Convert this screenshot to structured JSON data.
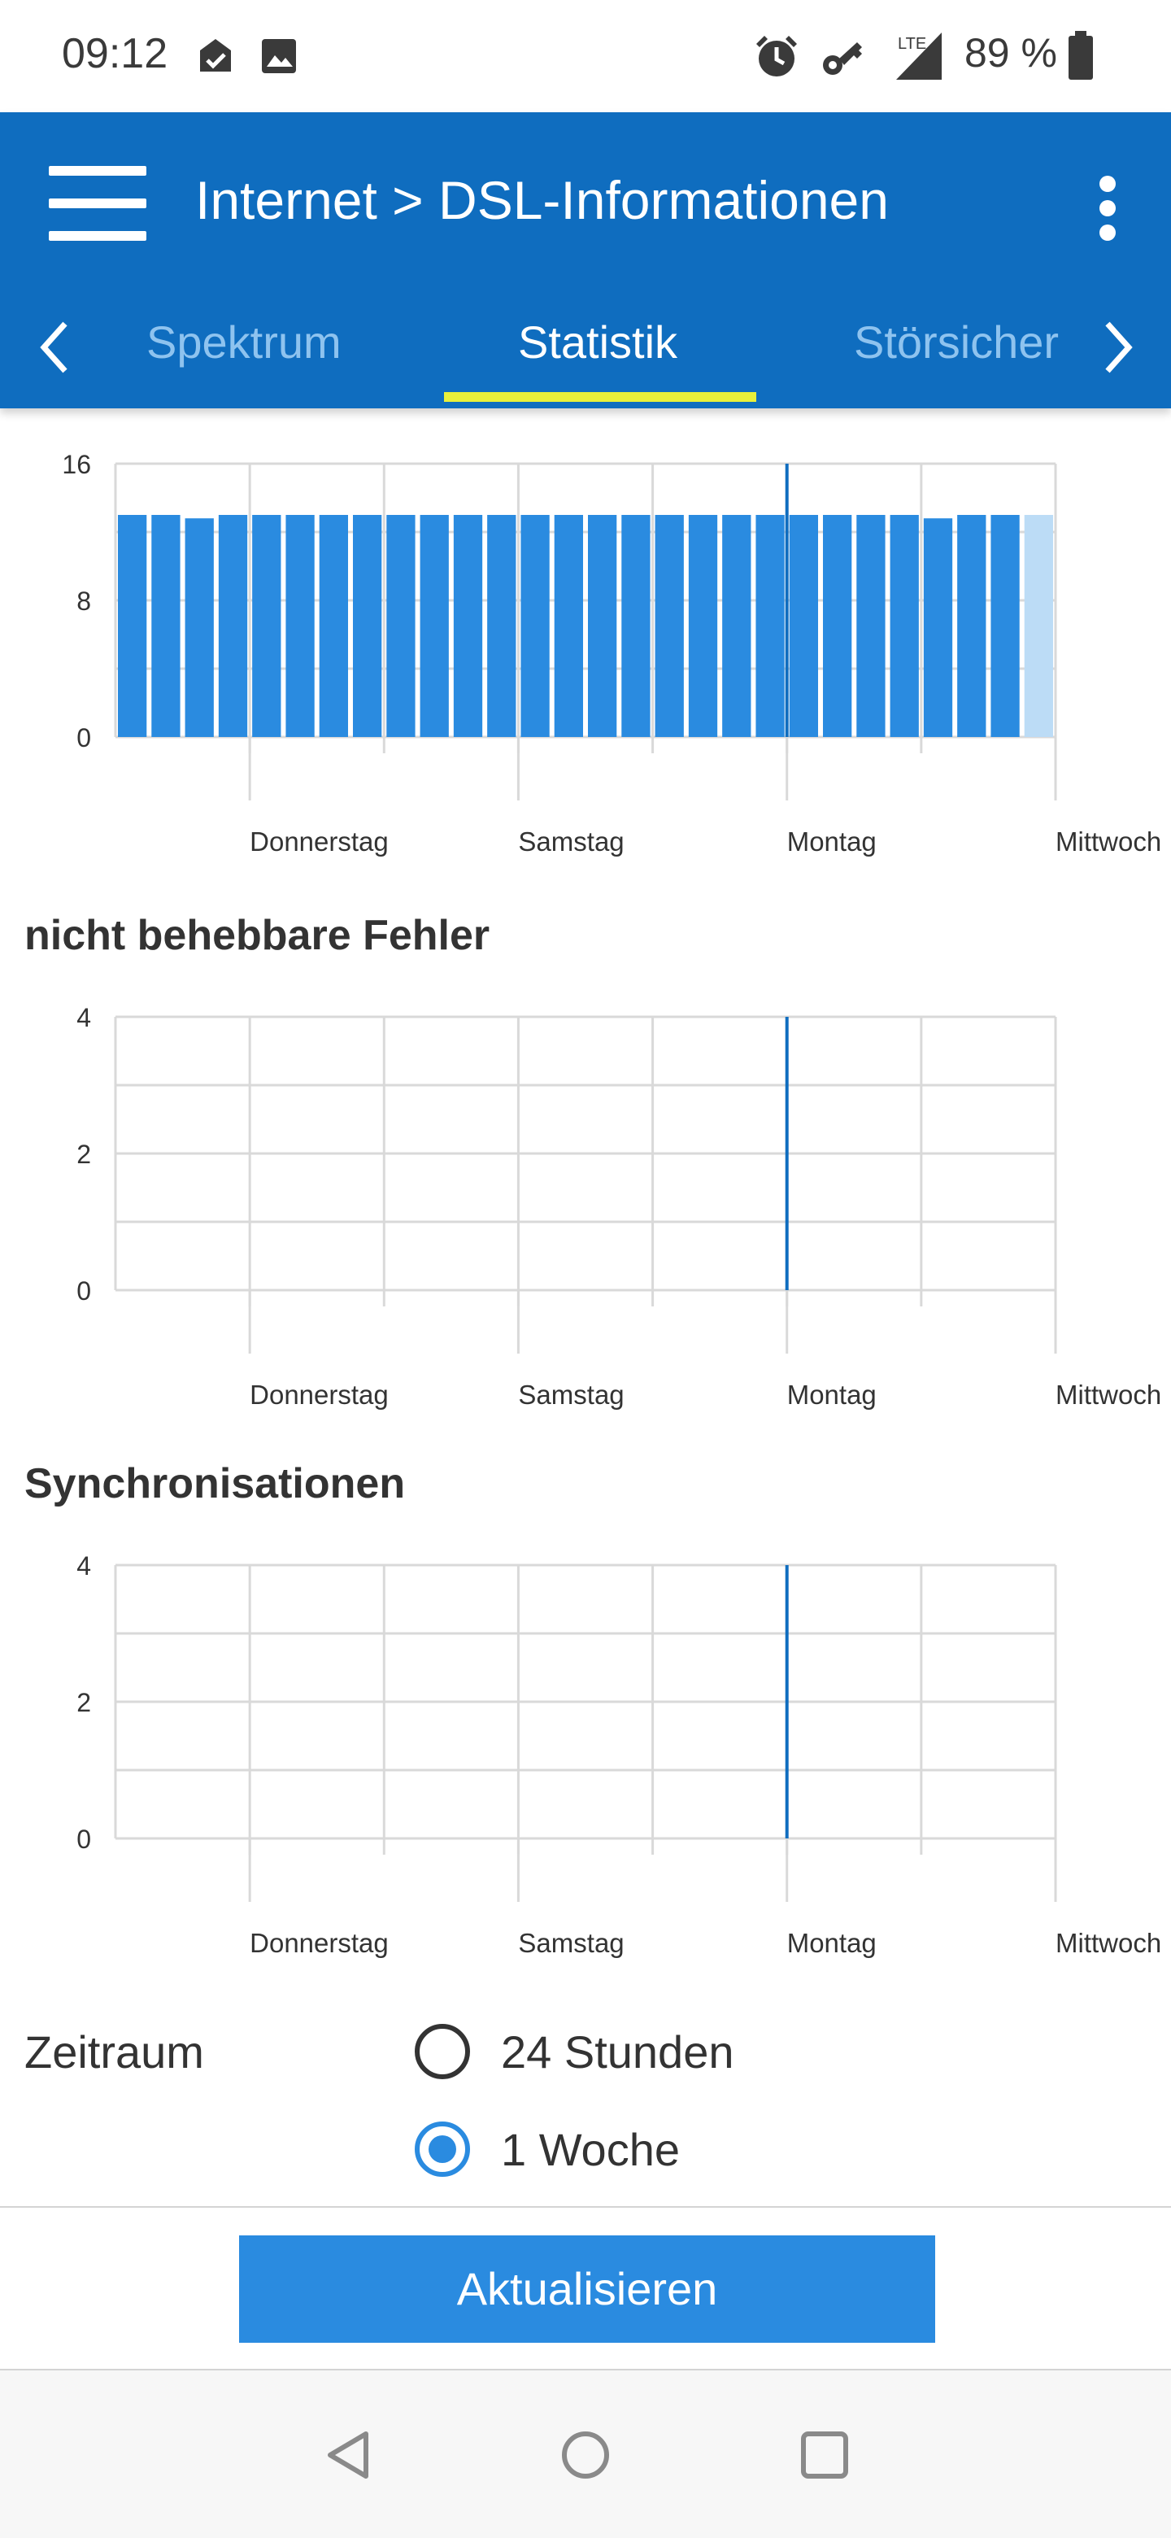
{
  "status_bar": {
    "time": "09:12",
    "icons": [
      "check-shield-icon",
      "image-icon",
      "alarm-icon",
      "key-icon",
      "lte-signal-icon",
      "battery-icon"
    ],
    "network": "LTE",
    "battery": "89 %"
  },
  "app_bar": {
    "title": "Internet > DSL-Informationen",
    "tabs": [
      {
        "label": "Spektrum",
        "selected": false
      },
      {
        "label": "Statistik",
        "selected": true
      },
      {
        "label": "Störsicher",
        "selected": false
      }
    ],
    "accent_color": "#0f6dbf",
    "indicator_color": "#e9f03a"
  },
  "charts": [
    {
      "title": "",
      "chart_data": {
        "type": "bar",
        "ylim": [
          0,
          16
        ],
        "yticks": [
          0,
          8,
          16
        ],
        "x_labels": [
          "Donnerstag",
          "Samstag",
          "Montag",
          "Mittwoch"
        ],
        "values": [
          13,
          13,
          12.8,
          13,
          13,
          13,
          13,
          13,
          13,
          13,
          13,
          13,
          13,
          13,
          13,
          13,
          13,
          13,
          13,
          13,
          13,
          13,
          13,
          13,
          12.8,
          13,
          13,
          13
        ],
        "highlight_last": true,
        "bar_color": "#2a8be0",
        "highlight_color": "#bcdcf6",
        "grid": true
      }
    },
    {
      "title": "nicht behebbare Fehler",
      "chart_data": {
        "type": "bar",
        "ylim": [
          0,
          4
        ],
        "yticks": [
          0,
          2,
          4
        ],
        "x_labels": [
          "Donnerstag",
          "Samstag",
          "Montag",
          "Mittwoch"
        ],
        "values": [],
        "grid": true
      }
    },
    {
      "title": "Synchronisationen",
      "chart_data": {
        "type": "bar",
        "ylim": [
          0,
          4
        ],
        "yticks": [
          0,
          2,
          4
        ],
        "x_labels": [
          "Donnerstag",
          "Samstag",
          "Montag",
          "Mittwoch"
        ],
        "values": [],
        "grid": true
      }
    }
  ],
  "period": {
    "label": "Zeitraum",
    "options": [
      {
        "label": "24 Stunden",
        "selected": false
      },
      {
        "label": "1 Woche",
        "selected": true
      }
    ]
  },
  "refresh_label": "Aktualisieren",
  "nav_bar": {
    "icons": [
      "back-icon",
      "home-icon",
      "recents-icon"
    ]
  }
}
